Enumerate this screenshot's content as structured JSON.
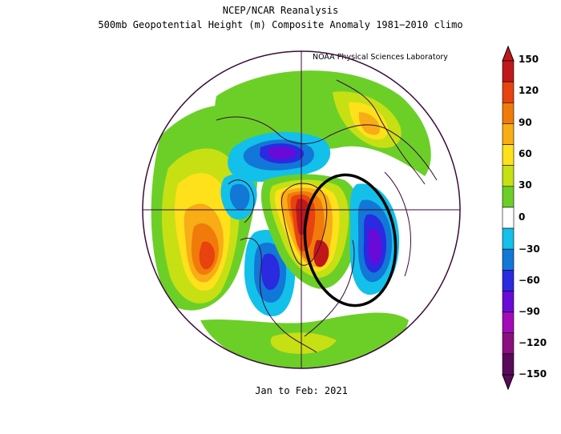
{
  "title": "NCEP/NCAR Reanalysis",
  "subtitle": "500mb Geopotential Height (m) Composite Anomaly 1981−2010 climo",
  "credit": "NOAA Physical Sciences Laboratory",
  "footer": "Jan to Feb: 2021",
  "projection": "north polar stereographic",
  "annotation": "black ellipse highlighting the Greenland ridge / northern Europe trough couplet",
  "colorbar": {
    "ticks": [
      "150",
      "120",
      "90",
      "60",
      "30",
      "0",
      "−30",
      "−60",
      "−90",
      "−120",
      "−150"
    ],
    "colors": [
      "#c0181a",
      "#e8420f",
      "#f07b0a",
      "#f8ac16",
      "#ffe11b",
      "#c6e014",
      "#6ccf28",
      "#ffffff",
      "#12c0ea",
      "#1277d6",
      "#2a2ae0",
      "#6a0ad8",
      "#a10bb8",
      "#8a1080",
      "#5a0a5a"
    ]
  }
}
